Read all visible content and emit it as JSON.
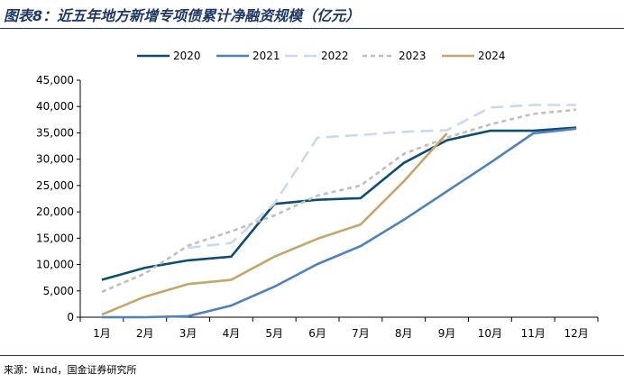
{
  "page": {
    "title": "图表8：近五年地方新增专项债累计净融资规模（亿元）",
    "source": "来源：Wind，国金证券研究所"
  },
  "chart_data": {
    "type": "line",
    "title": "图表8：近五年地方新增专项债累计净融资规模（亿元）",
    "xlabel": "",
    "ylabel": "",
    "categories": [
      "1月",
      "2月",
      "3月",
      "4月",
      "5月",
      "6月",
      "7月",
      "8月",
      "9月",
      "10月",
      "11月",
      "12月"
    ],
    "ylim": [
      0,
      45000
    ],
    "yticks": [
      0,
      5000,
      10000,
      15000,
      20000,
      25000,
      30000,
      35000,
      40000,
      45000
    ],
    "ytick_labels": [
      "0",
      "5,000",
      "10,000",
      "15,000",
      "20,000",
      "25,000",
      "30,000",
      "35,000",
      "40,000",
      "45,000"
    ],
    "grid": false,
    "legend_position": "top",
    "series": [
      {
        "name": "2020",
        "color": "#0d4d6e",
        "dash": "solid",
        "values": [
          7100,
          9400,
          10800,
          11500,
          21500,
          22300,
          22600,
          29300,
          33600,
          35400,
          35400,
          36000
        ]
      },
      {
        "name": "2021",
        "color": "#4f81bd",
        "dash": "solid",
        "values": [
          0,
          0,
          200,
          2200,
          5800,
          10100,
          13500,
          18500,
          23900,
          29300,
          34900,
          35800
        ]
      },
      {
        "name": "2022",
        "color": "#c9daf0",
        "dash": "long",
        "values": [
          null,
          null,
          13200,
          14100,
          21600,
          34100,
          34600,
          35200,
          35500,
          39800,
          40300,
          40300
        ]
      },
      {
        "name": "2023",
        "color": "#bfbfbf",
        "dash": "short",
        "values": [
          4800,
          8300,
          13600,
          16300,
          19300,
          23100,
          25000,
          31000,
          34100,
          36600,
          38600,
          39400
        ]
      },
      {
        "name": "2024",
        "color": "#c4a56a",
        "dash": "solid",
        "values": [
          500,
          3900,
          6300,
          7100,
          11500,
          14900,
          17600,
          25800,
          34900,
          null,
          null,
          null
        ]
      }
    ]
  }
}
